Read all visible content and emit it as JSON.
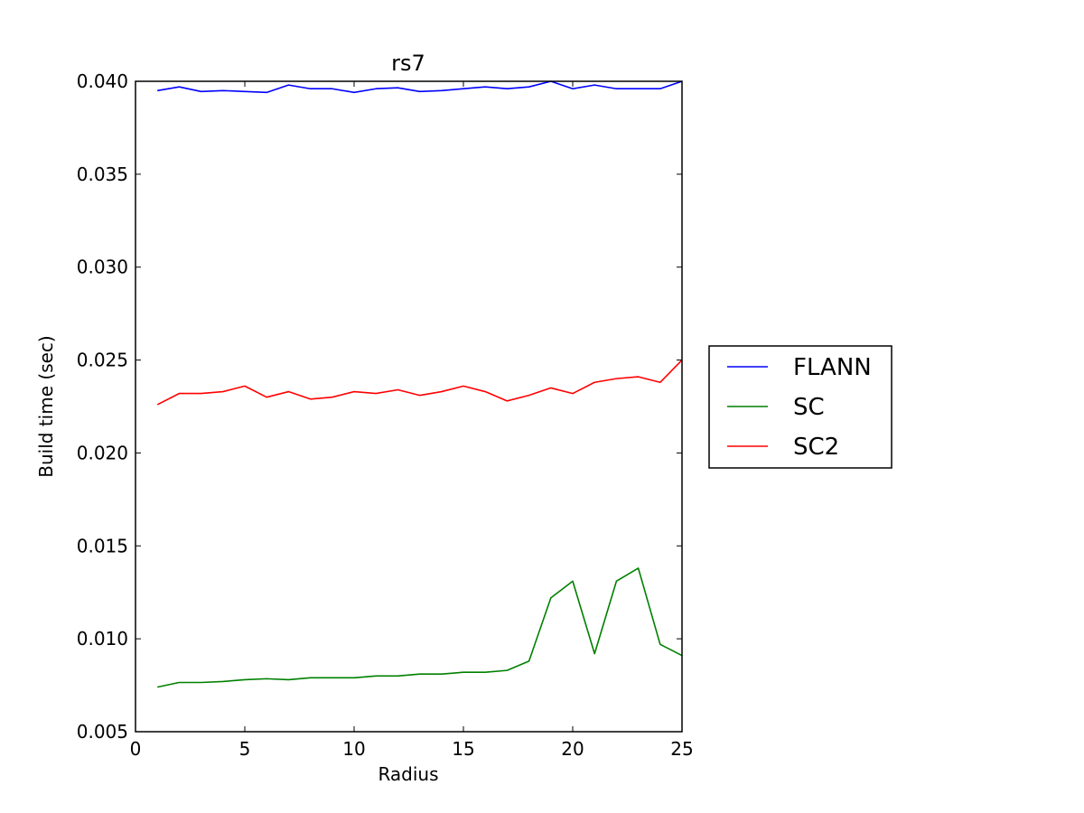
{
  "chart_data": {
    "type": "line",
    "title": "rs7",
    "xlabel": "Radius",
    "ylabel": "Build time (sec)",
    "xlim": [
      0,
      25
    ],
    "ylim": [
      0.005,
      0.04
    ],
    "xticks": [
      0,
      5,
      10,
      15,
      20,
      25
    ],
    "xtick_labels": [
      "0",
      "5",
      "10",
      "15",
      "20",
      "25"
    ],
    "yticks": [
      0.005,
      0.01,
      0.015,
      0.02,
      0.025,
      0.03,
      0.035,
      0.04
    ],
    "ytick_labels": [
      "0.005",
      "0.010",
      "0.015",
      "0.020",
      "0.025",
      "0.030",
      "0.035",
      "0.040"
    ],
    "grid": false,
    "legend_position": "outside-right",
    "x": [
      1,
      2,
      3,
      4,
      5,
      6,
      7,
      8,
      9,
      10,
      11,
      12,
      13,
      14,
      15,
      16,
      17,
      18,
      19,
      20,
      21,
      22,
      23,
      24,
      25
    ],
    "series": [
      {
        "name": "FLANN",
        "color": "#0000ff",
        "values": [
          0.0395,
          0.0397,
          0.03945,
          0.0395,
          0.03945,
          0.0394,
          0.0398,
          0.0396,
          0.0396,
          0.0394,
          0.0396,
          0.03965,
          0.03945,
          0.0395,
          0.0396,
          0.0397,
          0.0396,
          0.0397,
          0.04,
          0.0396,
          0.0398,
          0.0396,
          0.0396,
          0.0396,
          0.04
        ]
      },
      {
        "name": "SC",
        "color": "#008000",
        "values": [
          0.0074,
          0.00765,
          0.00765,
          0.0077,
          0.0078,
          0.00785,
          0.0078,
          0.0079,
          0.0079,
          0.0079,
          0.008,
          0.008,
          0.0081,
          0.0081,
          0.0082,
          0.0082,
          0.0083,
          0.0088,
          0.0122,
          0.0131,
          0.0092,
          0.0131,
          0.0138,
          0.0097,
          0.0091
        ]
      },
      {
        "name": "SC2",
        "color": "#ff0000",
        "values": [
          0.0226,
          0.0232,
          0.0232,
          0.0233,
          0.0236,
          0.023,
          0.0233,
          0.0229,
          0.023,
          0.0233,
          0.0232,
          0.0234,
          0.0231,
          0.0233,
          0.0236,
          0.0233,
          0.0228,
          0.0231,
          0.0235,
          0.0232,
          0.0238,
          0.024,
          0.0241,
          0.0238,
          0.025
        ]
      }
    ]
  }
}
